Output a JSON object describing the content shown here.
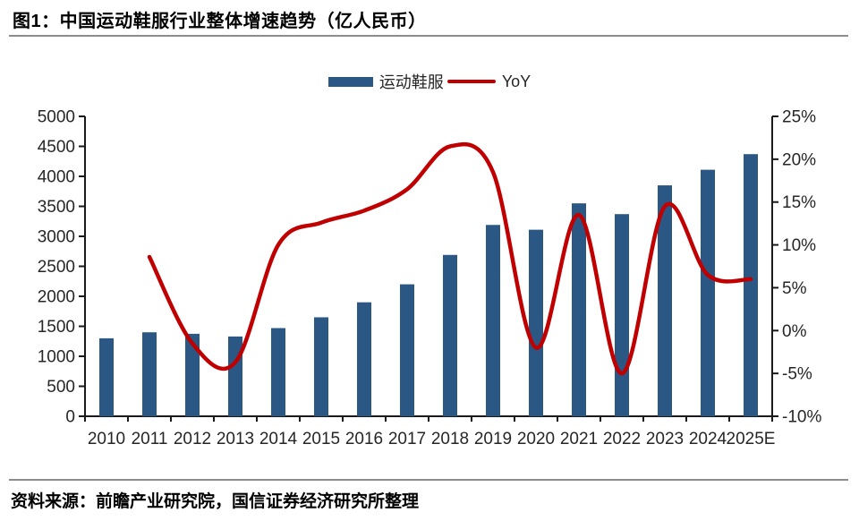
{
  "header": {
    "title": "图1：中国运动鞋服行业整体增速趋势（亿人民币）"
  },
  "legend": {
    "items": [
      {
        "label": "运动鞋服",
        "type": "bar",
        "color": "#2A5783"
      },
      {
        "label": "YoY",
        "type": "line",
        "color": "#C00000"
      }
    ]
  },
  "chart_data": {
    "type": "bar+line",
    "title": "中国运动鞋服行业整体增速趋势（亿人民币）",
    "categories": [
      "2010",
      "2011",
      "2012",
      "2013",
      "2014",
      "2015",
      "2016",
      "2017",
      "2018",
      "2019",
      "2020",
      "2021",
      "2022",
      "2023",
      "2024",
      "2025E"
    ],
    "series": [
      {
        "name": "运动鞋服",
        "type": "bar",
        "axis": "left",
        "color": "#2A5783",
        "values": [
          1300,
          1400,
          1375,
          1330,
          1470,
          1650,
          1900,
          2200,
          2690,
          3190,
          3110,
          3550,
          3370,
          3850,
          4110,
          4370
        ]
      },
      {
        "name": "YoY",
        "type": "line",
        "axis": "right",
        "color": "#C00000",
        "values": [
          null,
          8.6,
          -1.5,
          -3.7,
          10.0,
          12.6,
          14.0,
          16.5,
          21.5,
          18.5,
          -2.0,
          13.5,
          -5.0,
          14.5,
          6.5,
          6.0
        ]
      }
    ],
    "left_axis": {
      "min": 0,
      "max": 5000,
      "step": 500,
      "tick_labels": [
        "5000",
        "4500",
        "4000",
        "3500",
        "3000",
        "2500",
        "2000",
        "1500",
        "1000",
        "500",
        "0"
      ]
    },
    "right_axis": {
      "min": -10,
      "max": 25,
      "step": 5,
      "tick_labels": [
        "25%",
        "20%",
        "15%",
        "10%",
        "5%",
        "0%",
        "-5%",
        "-10%"
      ]
    },
    "grid": false,
    "legend_position": "top-center"
  },
  "footer": {
    "source": "资料来源：前瞻产业研究院，国信证券经济研究所整理"
  }
}
